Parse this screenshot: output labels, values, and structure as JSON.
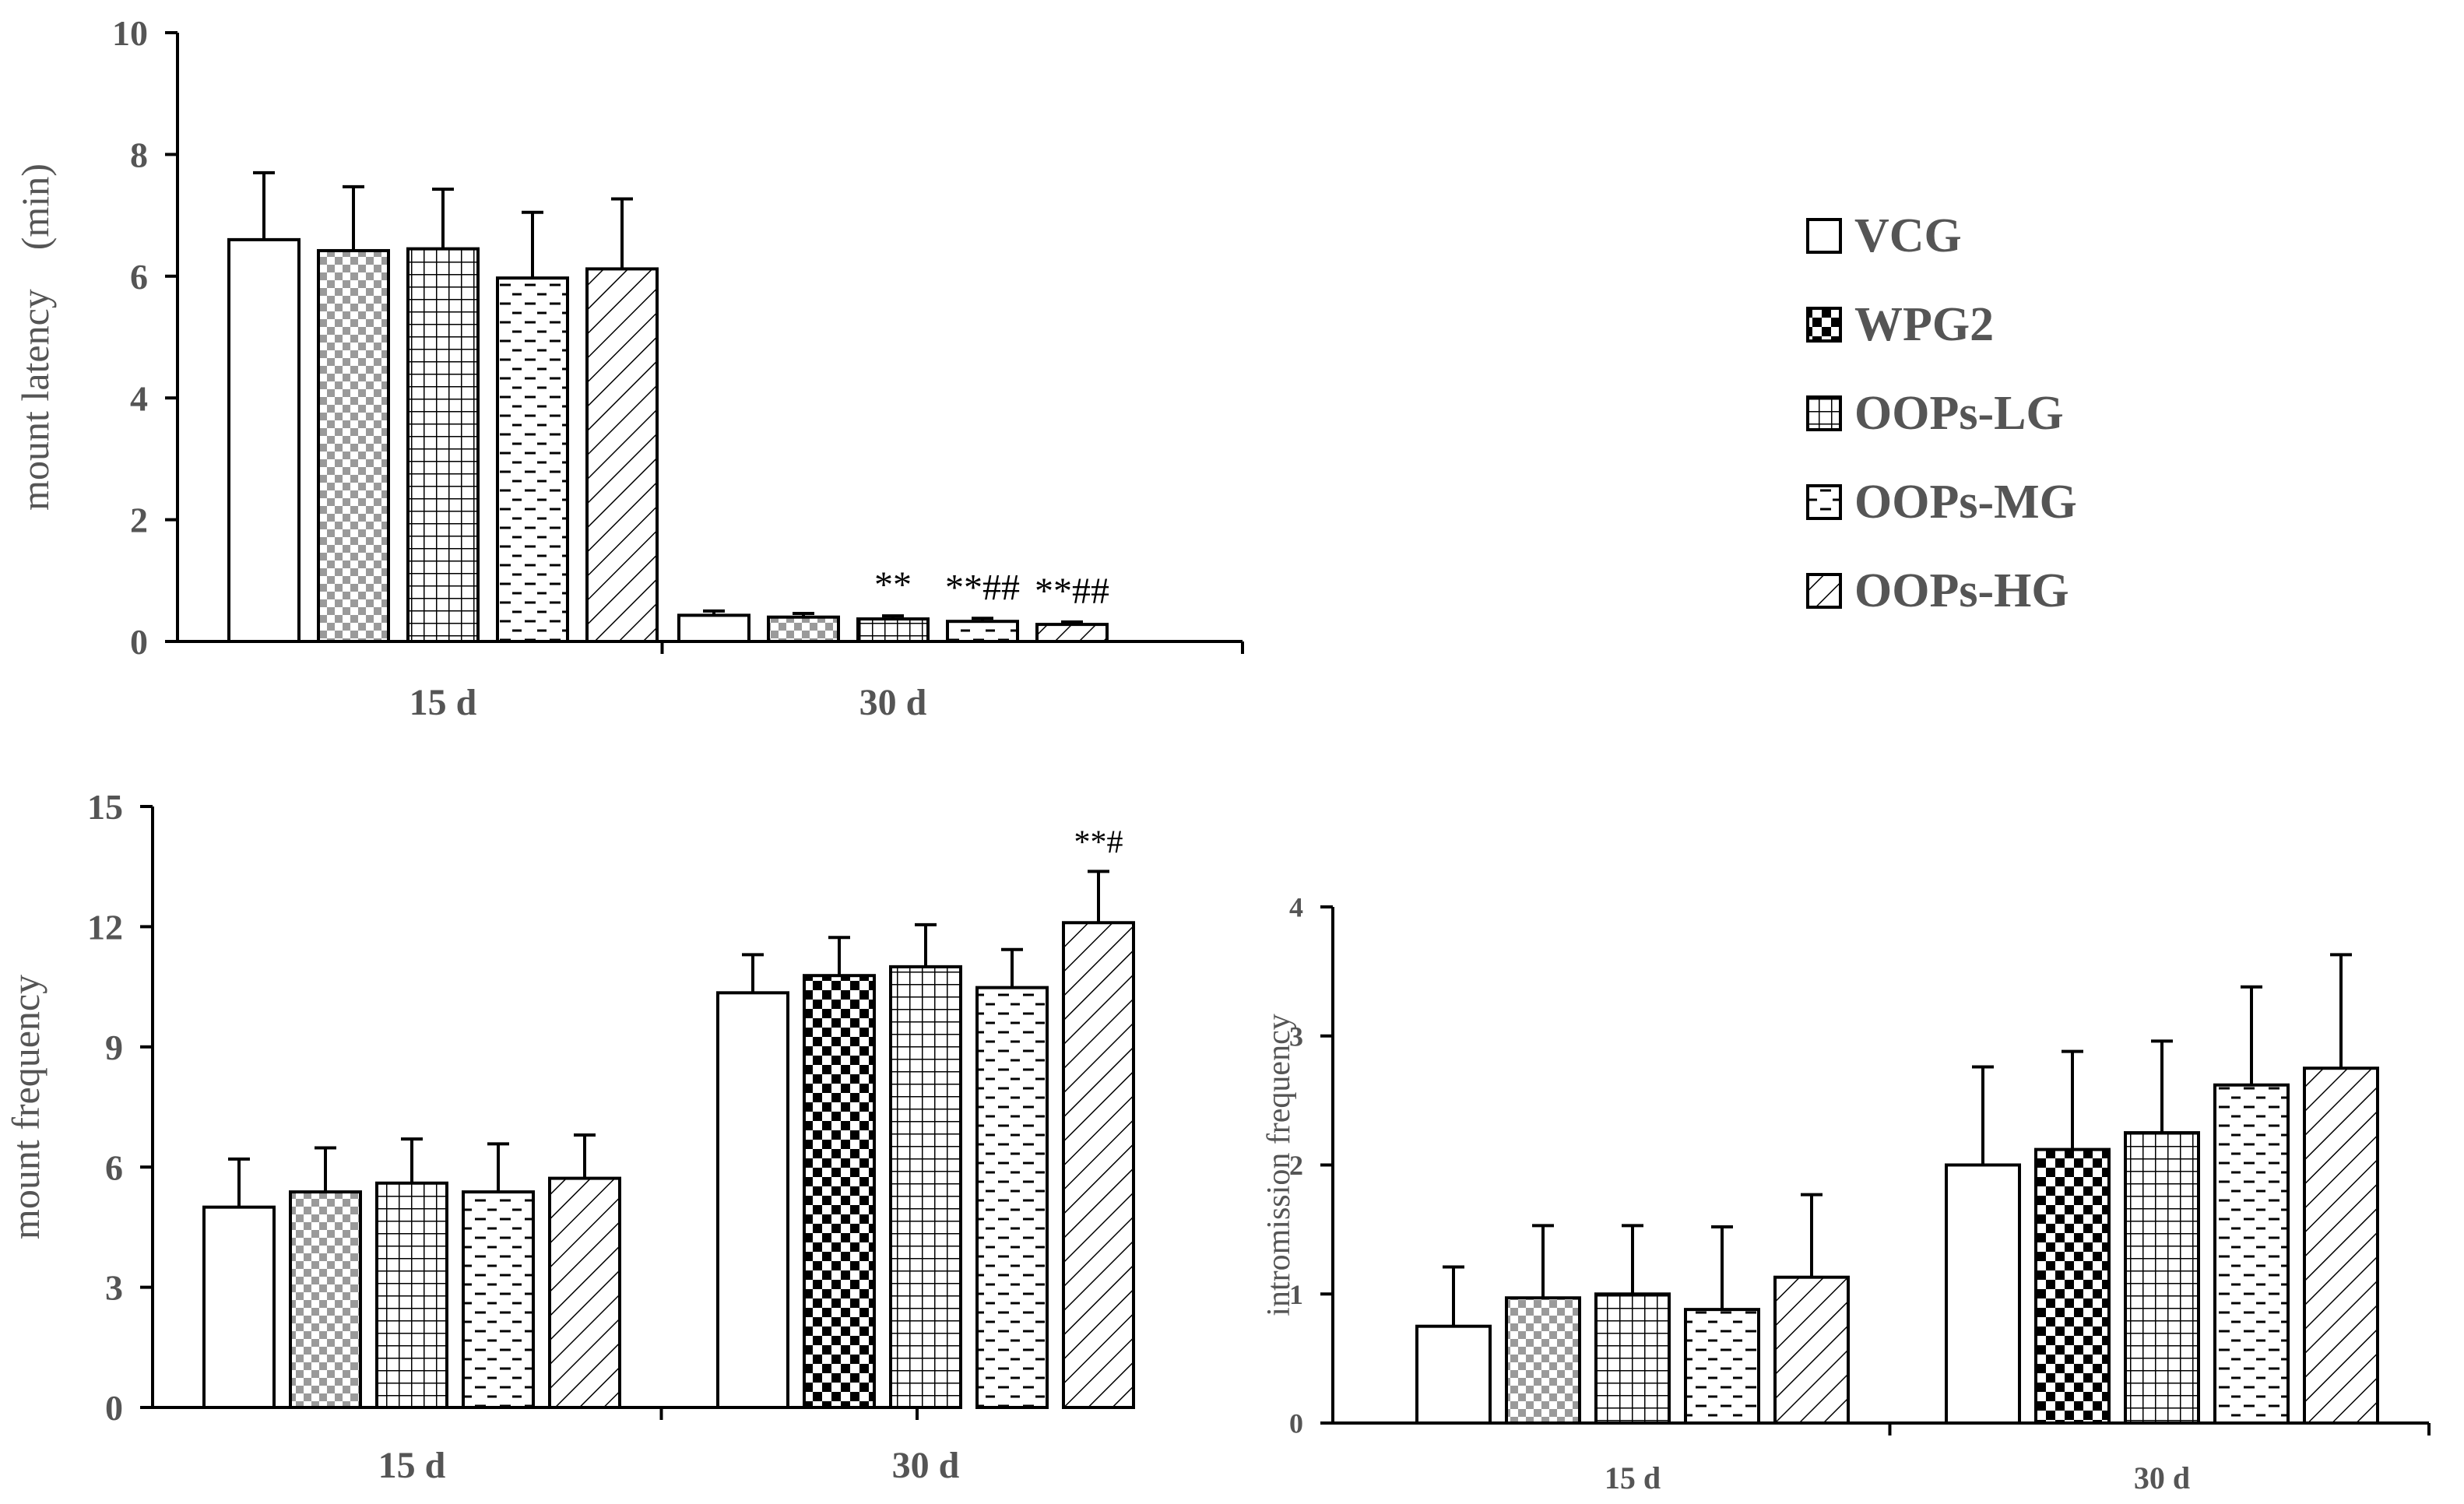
{
  "legend": [
    {
      "name": "VCG",
      "pattern": "white"
    },
    {
      "name": "WPG2",
      "pattern": "check"
    },
    {
      "name": "OOPs-LG",
      "pattern": "grid"
    },
    {
      "name": "OOPs-MG",
      "pattern": "dash"
    },
    {
      "name": "OOPs-HG",
      "pattern": "diag"
    }
  ],
  "chart_data": [
    {
      "type": "bar",
      "id": "mount-latency",
      "ylabel": "mount latency　(min)",
      "ylim": [
        0,
        10
      ],
      "yticks": [
        0,
        2,
        4,
        6,
        8,
        10
      ],
      "categories": [
        "15 d",
        "30 d"
      ],
      "series": [
        {
          "name": "VCG",
          "values": [
            6.6,
            0.43
          ],
          "errors": [
            1.1,
            0.07
          ],
          "annotations": [
            "",
            ""
          ],
          "pattern_by_cat": [
            "white",
            "white"
          ]
        },
        {
          "name": "WPG2",
          "values": [
            6.42,
            0.4
          ],
          "errors": [
            1.05,
            0.06
          ],
          "annotations": [
            "",
            ""
          ],
          "pattern_by_cat": [
            "check",
            "check"
          ]
        },
        {
          "name": "OOPs-LG",
          "values": [
            6.45,
            0.37
          ],
          "errors": [
            0.98,
            0.05
          ],
          "annotations": [
            "",
            "**"
          ],
          "pattern_by_cat": [
            "grid",
            "grid"
          ]
        },
        {
          "name": "OOPs-MG",
          "values": [
            5.97,
            0.33
          ],
          "errors": [
            1.08,
            0.05
          ],
          "annotations": [
            "",
            "**##"
          ],
          "pattern_by_cat": [
            "dash",
            "dash"
          ]
        },
        {
          "name": "OOPs-HG",
          "values": [
            6.12,
            0.28
          ],
          "errors": [
            1.15,
            0.04
          ],
          "annotations": [
            "",
            "**##"
          ],
          "pattern_by_cat": [
            "diag",
            "diag"
          ]
        }
      ]
    },
    {
      "type": "bar",
      "id": "mount-frequency",
      "ylabel": "mount frequency",
      "ylim": [
        0,
        15
      ],
      "yticks": [
        0,
        3,
        6,
        9,
        12,
        15
      ],
      "categories": [
        "15 d",
        "30 d"
      ],
      "series": [
        {
          "name": "VCG",
          "values": [
            5.0,
            10.35
          ],
          "errors": [
            1.2,
            0.95
          ],
          "annotations": [
            "",
            ""
          ],
          "pattern_by_cat": [
            "white",
            "white"
          ]
        },
        {
          "name": "WPG2",
          "values": [
            5.38,
            10.78
          ],
          "errors": [
            1.1,
            0.95
          ],
          "annotations": [
            "",
            ""
          ],
          "pattern_by_cat": [
            "check",
            "check"
          ]
        },
        {
          "name": "OOPs-LG",
          "values": [
            5.6,
            11.0
          ],
          "errors": [
            1.1,
            1.05
          ],
          "annotations": [
            "",
            ""
          ],
          "pattern_by_cat": [
            "grid",
            "grid"
          ]
        },
        {
          "name": "OOPs-MG",
          "values": [
            5.38,
            10.48
          ],
          "errors": [
            1.2,
            0.95
          ],
          "annotations": [
            "",
            ""
          ],
          "pattern_by_cat": [
            "dash",
            "dash"
          ]
        },
        {
          "name": "OOPs-HG",
          "values": [
            5.72,
            12.1
          ],
          "errors": [
            1.08,
            1.28
          ],
          "annotations": [
            "",
            "**#"
          ],
          "pattern_by_cat": [
            "diag",
            "diag"
          ]
        }
      ]
    },
    {
      "type": "bar",
      "id": "intromission-frequency",
      "ylabel": "intromission  frequency",
      "ylim": [
        0,
        4
      ],
      "yticks": [
        0,
        1,
        2,
        3,
        4
      ],
      "categories": [
        "15 d",
        "30 d"
      ],
      "series": [
        {
          "name": "VCG",
          "values": [
            0.75,
            2.0
          ],
          "errors": [
            0.46,
            0.76
          ],
          "annotations": [
            "",
            ""
          ],
          "pattern_by_cat": [
            "white",
            "white"
          ]
        },
        {
          "name": "WPG2",
          "values": [
            0.97,
            2.12
          ],
          "errors": [
            0.56,
            0.76
          ],
          "annotations": [
            "",
            ""
          ],
          "pattern_by_cat": [
            "check",
            "check"
          ]
        },
        {
          "name": "OOPs-LG",
          "values": [
            1.0,
            2.25
          ],
          "errors": [
            0.53,
            0.71
          ],
          "annotations": [
            "",
            ""
          ],
          "pattern_by_cat": [
            "grid",
            "grid"
          ]
        },
        {
          "name": "OOPs-MG",
          "values": [
            0.88,
            2.62
          ],
          "errors": [
            0.64,
            0.76
          ],
          "annotations": [
            "",
            ""
          ],
          "pattern_by_cat": [
            "dash",
            "dash"
          ]
        },
        {
          "name": "OOPs-HG",
          "values": [
            1.13,
            2.75
          ],
          "errors": [
            0.64,
            0.88
          ],
          "annotations": [
            "",
            ""
          ],
          "pattern_by_cat": [
            "diag",
            "diag"
          ]
        }
      ]
    }
  ]
}
